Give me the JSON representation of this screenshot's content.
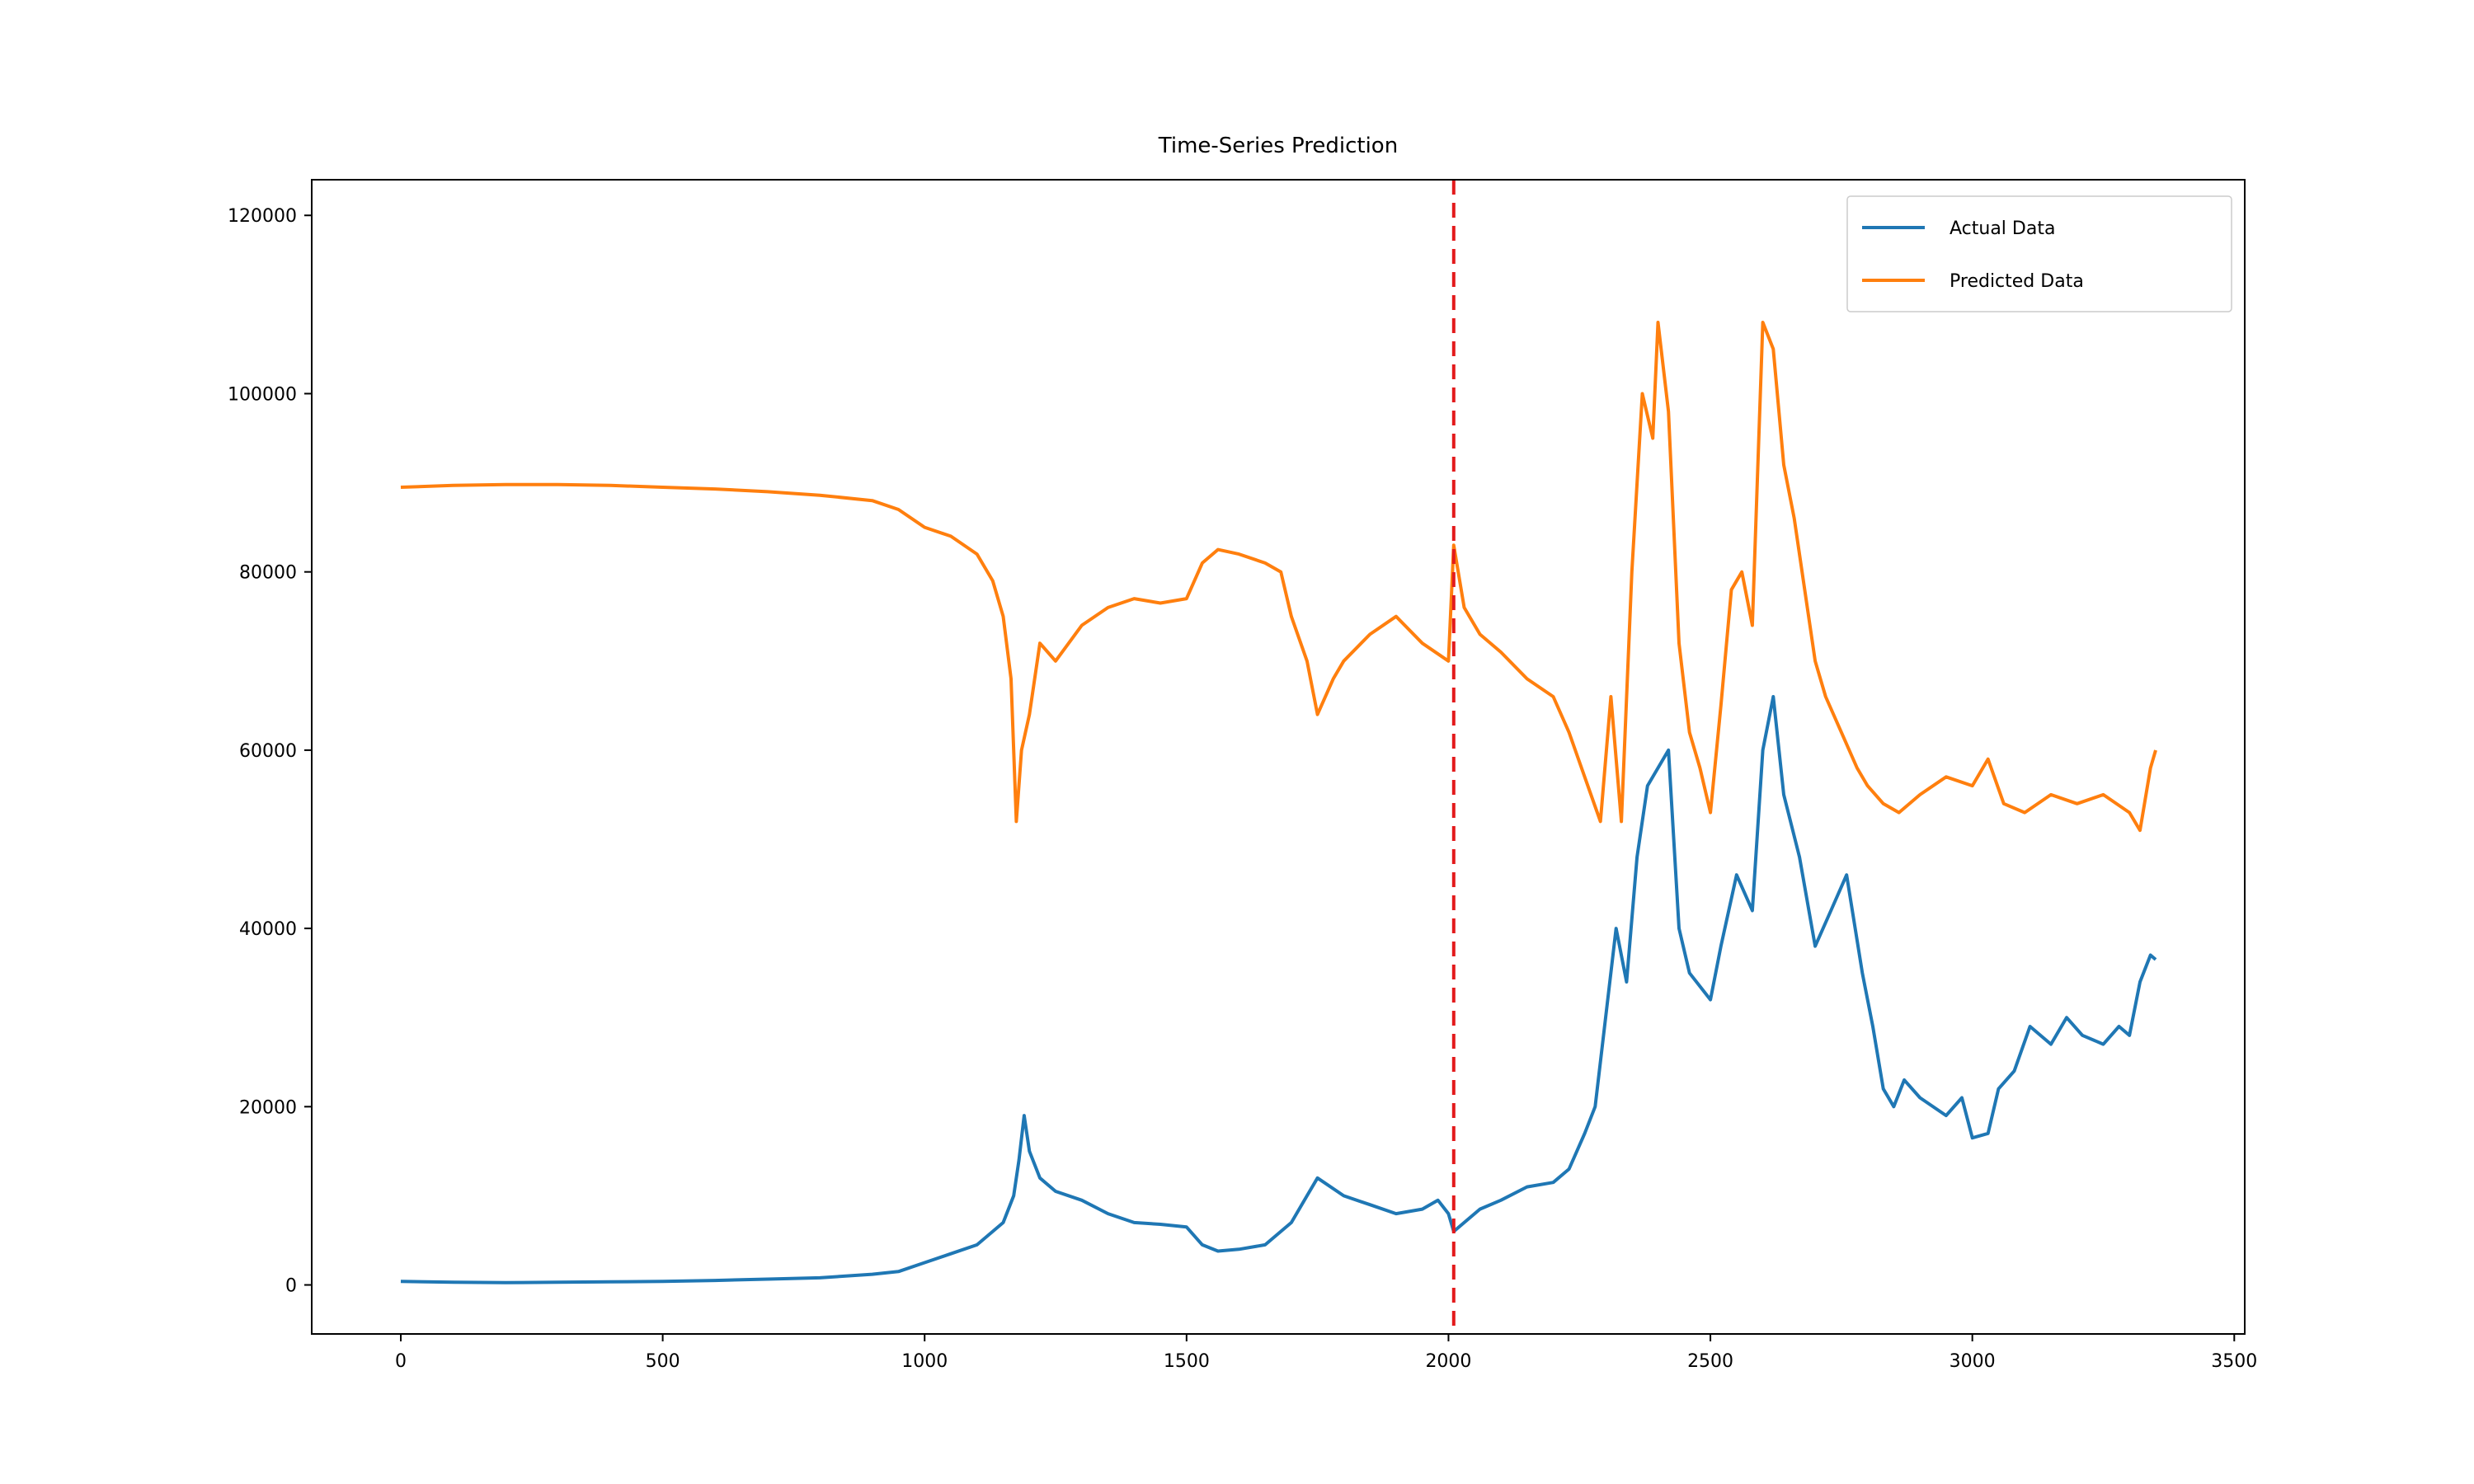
{
  "chart_data": {
    "type": "line",
    "title": "Time-Series Prediction",
    "xlabel": "",
    "ylabel": "",
    "xlim": [
      -170,
      3520
    ],
    "ylim": [
      -5500,
      124000
    ],
    "xticks": [
      0,
      500,
      1000,
      1500,
      2000,
      2500,
      3000,
      3500
    ],
    "yticks": [
      0,
      20000,
      40000,
      60000,
      80000,
      100000,
      120000
    ],
    "grid": false,
    "legend_position": "top-right",
    "split_marker": {
      "x": 2010,
      "color": "#e31a1c",
      "style": "dashed"
    },
    "series": [
      {
        "name": "Actual Data",
        "color": "#1f77b4",
        "points": [
          [
            0,
            400
          ],
          [
            100,
            300
          ],
          [
            200,
            250
          ],
          [
            300,
            300
          ],
          [
            400,
            350
          ],
          [
            500,
            400
          ],
          [
            600,
            500
          ],
          [
            700,
            650
          ],
          [
            800,
            800
          ],
          [
            900,
            1200
          ],
          [
            950,
            1500
          ],
          [
            1000,
            2500
          ],
          [
            1050,
            3500
          ],
          [
            1100,
            4500
          ],
          [
            1150,
            7000
          ],
          [
            1170,
            10000
          ],
          [
            1180,
            14000
          ],
          [
            1190,
            19000
          ],
          [
            1200,
            15000
          ],
          [
            1220,
            12000
          ],
          [
            1250,
            10500
          ],
          [
            1300,
            9500
          ],
          [
            1350,
            8000
          ],
          [
            1400,
            7000
          ],
          [
            1450,
            6800
          ],
          [
            1500,
            6500
          ],
          [
            1530,
            4500
          ],
          [
            1560,
            3800
          ],
          [
            1600,
            4000
          ],
          [
            1650,
            4500
          ],
          [
            1700,
            7000
          ],
          [
            1730,
            10000
          ],
          [
            1750,
            12000
          ],
          [
            1800,
            10000
          ],
          [
            1850,
            9000
          ],
          [
            1900,
            8000
          ],
          [
            1950,
            8500
          ],
          [
            1980,
            9500
          ],
          [
            2000,
            8000
          ],
          [
            2010,
            6000
          ],
          [
            2030,
            7000
          ],
          [
            2060,
            8500
          ],
          [
            2100,
            9500
          ],
          [
            2150,
            11000
          ],
          [
            2200,
            11500
          ],
          [
            2230,
            13000
          ],
          [
            2260,
            17000
          ],
          [
            2280,
            20000
          ],
          [
            2300,
            30000
          ],
          [
            2320,
            40000
          ],
          [
            2340,
            34000
          ],
          [
            2360,
            48000
          ],
          [
            2380,
            56000
          ],
          [
            2400,
            58000
          ],
          [
            2420,
            60000
          ],
          [
            2440,
            40000
          ],
          [
            2460,
            35000
          ],
          [
            2500,
            32000
          ],
          [
            2520,
            38000
          ],
          [
            2550,
            46000
          ],
          [
            2580,
            42000
          ],
          [
            2600,
            60000
          ],
          [
            2620,
            66000
          ],
          [
            2640,
            55000
          ],
          [
            2670,
            48000
          ],
          [
            2700,
            38000
          ],
          [
            2730,
            42000
          ],
          [
            2760,
            46000
          ],
          [
            2790,
            35000
          ],
          [
            2810,
            29000
          ],
          [
            2830,
            22000
          ],
          [
            2850,
            20000
          ],
          [
            2870,
            23000
          ],
          [
            2900,
            21000
          ],
          [
            2950,
            19000
          ],
          [
            2980,
            21000
          ],
          [
            3000,
            16500
          ],
          [
            3030,
            17000
          ],
          [
            3050,
            22000
          ],
          [
            3080,
            24000
          ],
          [
            3110,
            29000
          ],
          [
            3150,
            27000
          ],
          [
            3180,
            30000
          ],
          [
            3210,
            28000
          ],
          [
            3250,
            27000
          ],
          [
            3280,
            29000
          ],
          [
            3300,
            28000
          ],
          [
            3320,
            34000
          ],
          [
            3340,
            37000
          ],
          [
            3350,
            36500
          ]
        ]
      },
      {
        "name": "Predicted Data",
        "color": "#ff7f0e",
        "points": [
          [
            0,
            89500
          ],
          [
            100,
            89700
          ],
          [
            200,
            89800
          ],
          [
            300,
            89800
          ],
          [
            400,
            89700
          ],
          [
            500,
            89500
          ],
          [
            600,
            89300
          ],
          [
            700,
            89000
          ],
          [
            800,
            88600
          ],
          [
            900,
            88000
          ],
          [
            950,
            87000
          ],
          [
            1000,
            85000
          ],
          [
            1050,
            84000
          ],
          [
            1100,
            82000
          ],
          [
            1130,
            79000
          ],
          [
            1150,
            75000
          ],
          [
            1165,
            68000
          ],
          [
            1175,
            52000
          ],
          [
            1185,
            60000
          ],
          [
            1200,
            64000
          ],
          [
            1220,
            72000
          ],
          [
            1250,
            70000
          ],
          [
            1300,
            74000
          ],
          [
            1350,
            76000
          ],
          [
            1400,
            77000
          ],
          [
            1450,
            76500
          ],
          [
            1500,
            77000
          ],
          [
            1530,
            81000
          ],
          [
            1560,
            82500
          ],
          [
            1600,
            82000
          ],
          [
            1650,
            81000
          ],
          [
            1680,
            80000
          ],
          [
            1700,
            75000
          ],
          [
            1730,
            70000
          ],
          [
            1750,
            64000
          ],
          [
            1780,
            68000
          ],
          [
            1800,
            70000
          ],
          [
            1850,
            73000
          ],
          [
            1900,
            75000
          ],
          [
            1950,
            72000
          ],
          [
            2000,
            70000
          ],
          [
            2010,
            83000
          ],
          [
            2030,
            76000
          ],
          [
            2060,
            73000
          ],
          [
            2100,
            71000
          ],
          [
            2150,
            68000
          ],
          [
            2200,
            66000
          ],
          [
            2230,
            62000
          ],
          [
            2260,
            57000
          ],
          [
            2290,
            52000
          ],
          [
            2310,
            66000
          ],
          [
            2330,
            52000
          ],
          [
            2350,
            80000
          ],
          [
            2370,
            100000
          ],
          [
            2390,
            95000
          ],
          [
            2400,
            108000
          ],
          [
            2420,
            98000
          ],
          [
            2440,
            72000
          ],
          [
            2460,
            62000
          ],
          [
            2480,
            58000
          ],
          [
            2500,
            53000
          ],
          [
            2520,
            65000
          ],
          [
            2540,
            78000
          ],
          [
            2560,
            80000
          ],
          [
            2580,
            74000
          ],
          [
            2600,
            108000
          ],
          [
            2620,
            105000
          ],
          [
            2640,
            92000
          ],
          [
            2660,
            86000
          ],
          [
            2680,
            78000
          ],
          [
            2700,
            70000
          ],
          [
            2720,
            66000
          ],
          [
            2750,
            62000
          ],
          [
            2780,
            58000
          ],
          [
            2800,
            56000
          ],
          [
            2830,
            54000
          ],
          [
            2860,
            53000
          ],
          [
            2900,
            55000
          ],
          [
            2950,
            57000
          ],
          [
            3000,
            56000
          ],
          [
            3030,
            59000
          ],
          [
            3060,
            54000
          ],
          [
            3100,
            53000
          ],
          [
            3150,
            55000
          ],
          [
            3200,
            54000
          ],
          [
            3250,
            55000
          ],
          [
            3300,
            53000
          ],
          [
            3320,
            51000
          ],
          [
            3340,
            58000
          ],
          [
            3350,
            60000
          ]
        ]
      }
    ]
  }
}
